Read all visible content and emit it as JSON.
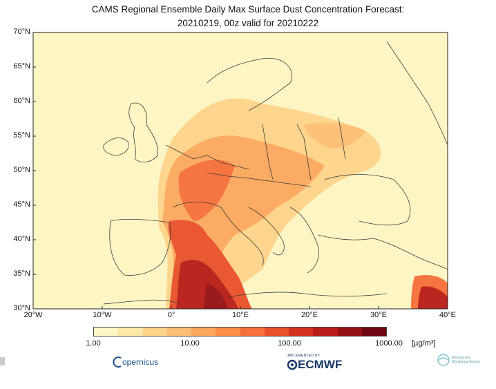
{
  "title_line1": "CAMS Regional Ensemble Daily Max Surface Dust Concentration Forecast:",
  "title_line2": "20210219, 00z valid for 20210222",
  "lat_labels": [
    "70°N",
    "65°N",
    "60°N",
    "55°N",
    "50°N",
    "45°N",
    "40°N",
    "35°N",
    "30°N"
  ],
  "lon_labels": [
    "20°W",
    "10°W",
    "0°",
    "10°E",
    "20°E",
    "30°E",
    "40°E"
  ],
  "colorbar": {
    "labels": [
      "1.00",
      "10.00",
      "100.00",
      "1000.00"
    ],
    "unit": "[µg/m³]",
    "colors": [
      "#fdf7c8",
      "#fee9a6",
      "#fed48a",
      "#fdbf74",
      "#fca85e",
      "#fb8d48",
      "#f6703a",
      "#e9502c",
      "#d43220",
      "#b81b18",
      "#951014",
      "#6e0510"
    ]
  },
  "colors": {
    "land": "#fdf6c4",
    "sea": "#ffffff",
    "border": "#3a3a3a"
  },
  "logos": {
    "copernicus": "opernicus",
    "ecmwf_small": "IMPLEMENTED BY",
    "ecmwf": "ECMWF",
    "atmosphere": "Atmosphere Monitoring Service"
  }
}
